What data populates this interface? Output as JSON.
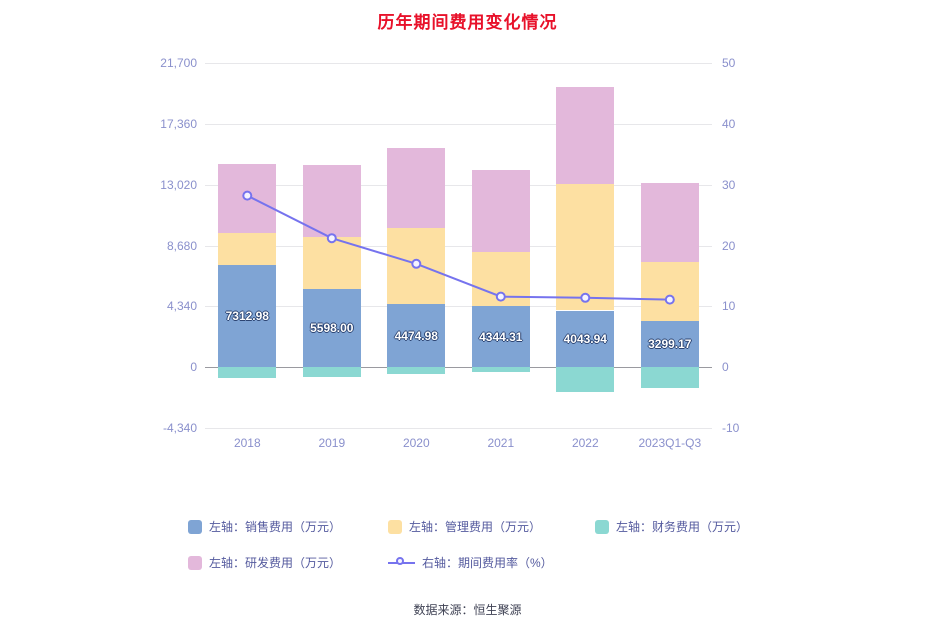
{
  "title": "历年期间费用变化情况",
  "source": "数据来源：恒生聚源",
  "colors": {
    "sales": "#7fa4d4",
    "management": "#fde0a2",
    "finance": "#8bd8d2",
    "rnd": "#e3b8db",
    "line": "#7673ee",
    "title": "#e8112a",
    "axis_text": "#8a90cc",
    "label_text": "#ffffff",
    "label_outline": "#2c4472",
    "grid": "#e7e7ea",
    "zero_line": "#9a9aa0"
  },
  "chart_data": {
    "type": "bar",
    "stacked": true,
    "title": "历年期间费用变化情况",
    "categories": [
      "2018",
      "2019",
      "2020",
      "2021",
      "2022",
      "2023Q1-Q3"
    ],
    "series": [
      {
        "key": "sales",
        "name": "左轴：销售费用（万元）",
        "axis": "left",
        "type": "bar",
        "values": [
          7312.98,
          5598.0,
          4474.98,
          4344.31,
          4043.94,
          3299.17
        ]
      },
      {
        "key": "management",
        "name": "左轴：管理费用（万元）",
        "axis": "left",
        "type": "bar",
        "values": [
          2270,
          3700,
          5460,
          3880,
          9030,
          4210
        ]
      },
      {
        "key": "finance",
        "name": "左轴：财务费用（万元）",
        "axis": "left",
        "type": "bar",
        "values": [
          -760,
          -690,
          -480,
          -340,
          -1760,
          -1480
        ]
      },
      {
        "key": "rnd",
        "name": "左轴：研发费用（万元）",
        "axis": "left",
        "type": "bar",
        "values": [
          4920,
          5140,
          5700,
          5850,
          6890,
          5640
        ]
      },
      {
        "key": "ratio",
        "name": "右轴：期间费用率（%）",
        "axis": "right",
        "type": "line",
        "values": [
          28.2,
          21.2,
          17.0,
          11.6,
          11.4,
          11.1
        ]
      }
    ],
    "bar_labels": [
      "7312.98",
      "5598.00",
      "4474.98",
      "4344.31",
      "4043.94",
      "3299.17"
    ],
    "left_axis": {
      "ticks": [
        "21,700",
        "17,360",
        "13,020",
        "8,680",
        "4,340",
        "0",
        "-4,340"
      ],
      "min": -4340,
      "max": 21700
    },
    "right_axis": {
      "ticks": [
        "50",
        "40",
        "30",
        "20",
        "10",
        "0",
        "-10"
      ],
      "min": -10,
      "max": 50
    },
    "legend_position": "bottom",
    "grid": true
  },
  "legend": {
    "rows": [
      [
        {
          "key": "sales",
          "label": "左轴：销售费用（万元）",
          "type": "square"
        },
        {
          "key": "management",
          "label": "左轴：管理费用（万元）",
          "type": "square"
        },
        {
          "key": "finance",
          "label": "左轴：财务费用（万元）",
          "type": "square"
        }
      ],
      [
        {
          "key": "rnd",
          "label": "左轴：研发费用（万元）",
          "type": "square"
        },
        {
          "key": "ratio",
          "label": "右轴：期间费用率（%）",
          "type": "line"
        }
      ]
    ]
  }
}
